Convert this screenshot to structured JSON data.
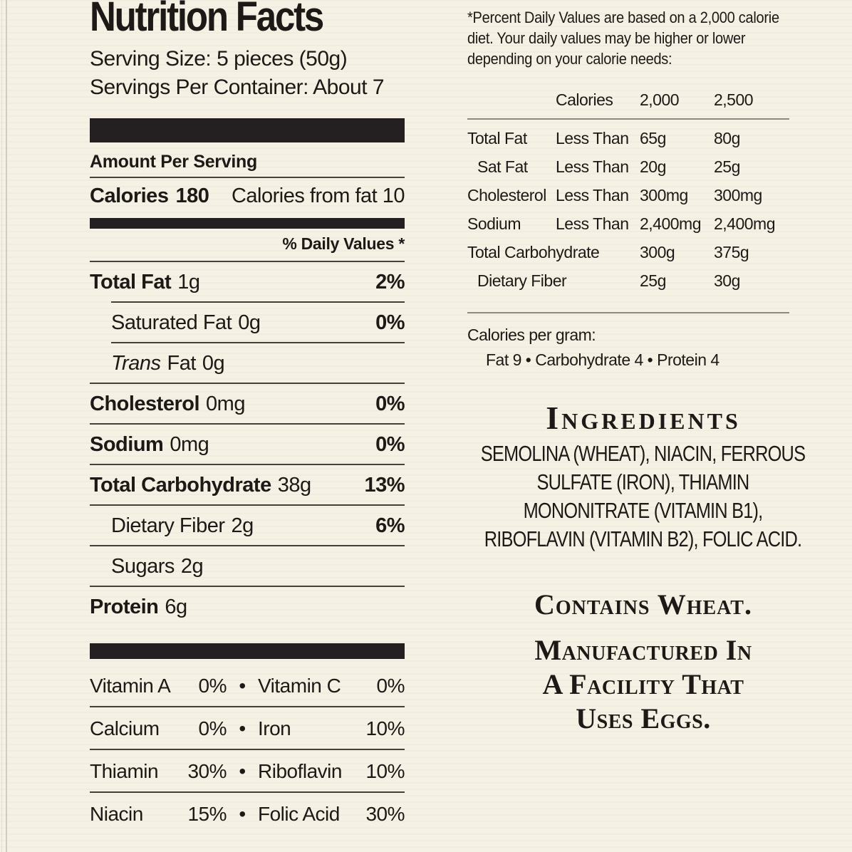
{
  "colors": {
    "background": "#f5f1e5",
    "text": "#1c1916",
    "bar": "#242021",
    "rule_dark": "#44403a",
    "rule_light": "#8f897c"
  },
  "label": {
    "title": "Nutrition Facts",
    "serving_size": "Serving Size: 5 pieces (50g)",
    "servings_per_container": "Servings Per Container: About 7",
    "amount_per_serving": "Amount Per Serving",
    "calories_label": "Calories",
    "calories_value": "180",
    "calories_from_fat": "Calories from fat 10",
    "daily_values_header": "% Daily Values *",
    "bullet": "•",
    "nutrients": [
      {
        "name": "Total Fat",
        "amount": "1g",
        "dv": "2%"
      },
      {
        "name": "Saturated Fat",
        "amount": "0g",
        "dv": "0%"
      },
      {
        "name_prefix": "Trans",
        "name_suffix": "Fat",
        "amount": "0g"
      },
      {
        "name": "Cholesterol",
        "amount": "0mg",
        "dv": "0%"
      },
      {
        "name": "Sodium",
        "amount": "0mg",
        "dv": "0%"
      },
      {
        "name": "Total Carbohydrate",
        "amount": "38g",
        "dv": "13%"
      },
      {
        "name": "Dietary Fiber",
        "amount": "2g",
        "dv": "6%"
      },
      {
        "name": "Sugars",
        "amount": "2g"
      },
      {
        "name": "Protein",
        "amount": "6g"
      }
    ],
    "vitamins": [
      {
        "left_name": "Vitamin A",
        "left_value": "0%",
        "right_name": "Vitamin C",
        "right_value": "0%"
      },
      {
        "left_name": "Calcium",
        "left_value": "0%",
        "right_name": "Iron",
        "right_value": "10%"
      },
      {
        "left_name": "Thiamin",
        "left_value": "30%",
        "right_name": "Riboflavin",
        "right_value": "10%"
      },
      {
        "left_name": "Niacin",
        "left_value": "15%",
        "right_name": "Folic Acid",
        "right_value": "30%"
      }
    ]
  },
  "footnote": {
    "text": "*Percent Daily Values are based on a 2,000 calorie diet. Your daily values may be higher or lower depending on your calorie needs:"
  },
  "dv_table": {
    "header": {
      "calories": "Calories",
      "col_2000": "2,000",
      "col_2500": "2,500"
    },
    "rows": [
      {
        "name": "Total Fat",
        "qualifier": "Less Than",
        "v2000": "65g",
        "v2500": "80g"
      },
      {
        "name": "Sat Fat",
        "qualifier": "Less Than",
        "v2000": "20g",
        "v2500": "25g"
      },
      {
        "name": "Cholesterol",
        "qualifier": "Less Than",
        "v2000": "300mg",
        "v2500": "300mg"
      },
      {
        "name": "Sodium",
        "qualifier": "Less Than",
        "v2000": "2,400mg",
        "v2500": "2,400mg"
      },
      {
        "name": "Total Carbohydrate",
        "qualifier": "",
        "v2000": "300g",
        "v2500": "375g"
      },
      {
        "name": "Dietary Fiber",
        "qualifier": "",
        "v2000": "25g",
        "v2500": "30g"
      }
    ]
  },
  "calories_per_gram": {
    "heading": "Calories per gram:",
    "values": "Fat 9  •  Carbohydrate 4  •  Protein 4"
  },
  "ingredients": {
    "heading": "Ingredients",
    "text": "SEMOLINA (WHEAT), NIACIN, FERROUS SULFATE (IRON), THIAMIN MONONITRATE (VITAMIN B1), RIBOFLAVIN (VITAMIN B2), FOLIC ACID."
  },
  "allergens": {
    "contains": "Contains Wheat.",
    "facility_line1": "Manufactured In",
    "facility_line2": "A Facility That",
    "facility_line3": "Uses Eggs."
  }
}
